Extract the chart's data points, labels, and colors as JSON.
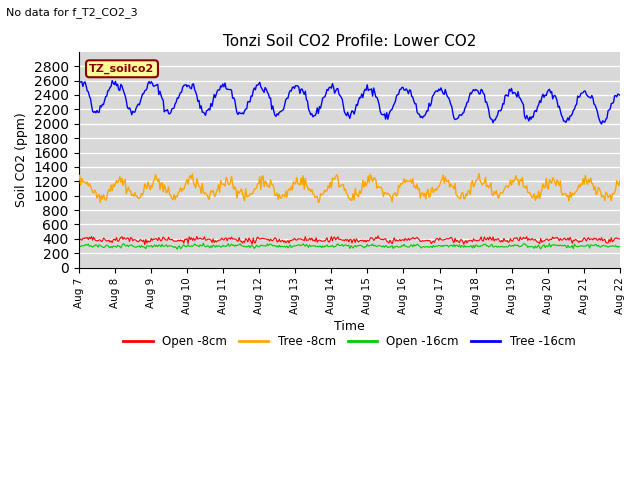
{
  "title": "Tonzi Soil CO2 Profile: Lower CO2",
  "suptitle": "No data for f_T2_CO2_3",
  "ylabel": "Soil CO2 (ppm)",
  "xlabel": "Time",
  "legend_label": "TZ_soilco2",
  "ylim": [
    0,
    3000
  ],
  "yticks": [
    0,
    200,
    400,
    600,
    800,
    1000,
    1200,
    1400,
    1600,
    1800,
    2000,
    2200,
    2400,
    2600,
    2800
  ],
  "plot_bg_color": "#d8d8d8",
  "fig_bg_color": "#ffffff",
  "grid_color": "#ffffff",
  "line_colors": {
    "open_8cm": "#ff0000",
    "tree_8cm": "#ffa500",
    "open_16cm": "#00cc00",
    "tree_16cm": "#0000ff"
  },
  "legend_entries": [
    "Open -8cm",
    "Tree -8cm",
    "Open -16cm",
    "Tree -16cm"
  ],
  "n_points": 500,
  "tick_labels": [
    "Aug 7",
    "Aug 8",
    "Aug 9",
    "Aug 10",
    "Aug 11",
    "Aug 12",
    "Aug 13",
    "Aug 14",
    "Aug 15",
    "Aug 16",
    "Aug 17",
    "Aug 18",
    "Aug 19",
    "Aug 20",
    "Aug 21",
    "Aug 22"
  ]
}
